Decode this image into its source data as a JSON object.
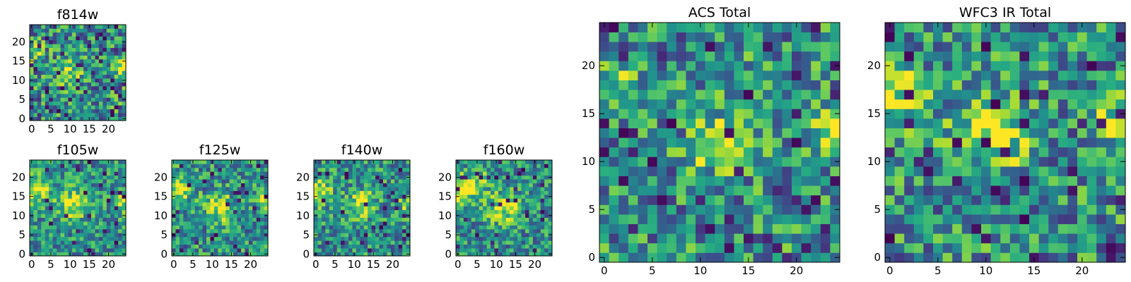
{
  "chart_data": [
    {
      "id": "f814w",
      "type": "heatmap",
      "title": "f814w",
      "colormap": "viridis",
      "xlabel": "",
      "ylabel": "",
      "xlim": [
        -0.5,
        24.5
      ],
      "ylim": [
        -0.5,
        24.5
      ],
      "xticks": [
        0,
        5,
        10,
        15,
        20
      ],
      "yticks": [
        0,
        5,
        10,
        15,
        20
      ],
      "seed": 814,
      "noise": 0.35,
      "dark_rate": 0.06,
      "blobs": [
        {
          "x": 10,
          "y": 12,
          "s": 2.2,
          "a": 0.35
        },
        {
          "x": 24,
          "y": 13,
          "s": 1.8,
          "a": 0.5
        },
        {
          "x": 1,
          "y": 17,
          "s": 2.0,
          "a": 0.25
        }
      ]
    },
    {
      "id": "f105w",
      "type": "heatmap",
      "title": "f105w",
      "colormap": "viridis",
      "xlabel": "",
      "ylabel": "",
      "xlim": [
        -0.5,
        24.5
      ],
      "ylim": [
        -0.5,
        24.5
      ],
      "xticks": [
        0,
        5,
        10,
        15,
        20
      ],
      "yticks": [
        0,
        5,
        10,
        15,
        20
      ],
      "seed": 105,
      "noise": 0.28,
      "dark_rate": 0.04,
      "blobs": [
        {
          "x": 1,
          "y": 17,
          "s": 2.6,
          "a": 0.45
        },
        {
          "x": 11,
          "y": 13,
          "s": 3.0,
          "a": 0.4
        },
        {
          "x": 24,
          "y": 13,
          "s": 1.8,
          "a": 0.4
        }
      ]
    },
    {
      "id": "f125w",
      "type": "heatmap",
      "title": "f125w",
      "colormap": "viridis",
      "xlabel": "",
      "ylabel": "",
      "xlim": [
        -0.5,
        24.5
      ],
      "ylim": [
        -0.5,
        24.5
      ],
      "xticks": [
        0,
        5,
        10,
        15,
        20
      ],
      "yticks": [
        0,
        5,
        10,
        15,
        20
      ],
      "seed": 125,
      "noise": 0.3,
      "dark_rate": 0.04,
      "blobs": [
        {
          "x": 1,
          "y": 17,
          "s": 2.6,
          "a": 0.45
        },
        {
          "x": 12,
          "y": 12,
          "s": 2.6,
          "a": 0.45
        },
        {
          "x": 24,
          "y": 14,
          "s": 1.8,
          "a": 0.35
        }
      ]
    },
    {
      "id": "f140w",
      "type": "heatmap",
      "title": "f140w",
      "colormap": "viridis",
      "xlabel": "",
      "ylabel": "",
      "xlim": [
        -0.5,
        24.5
      ],
      "ylim": [
        -0.5,
        24.5
      ],
      "xticks": [
        0,
        5,
        10,
        15,
        20
      ],
      "yticks": [
        0,
        5,
        10,
        15,
        20
      ],
      "seed": 140,
      "noise": 0.3,
      "dark_rate": 0.05,
      "blobs": [
        {
          "x": 1,
          "y": 16,
          "s": 2.4,
          "a": 0.45
        },
        {
          "x": 12,
          "y": 13,
          "s": 2.6,
          "a": 0.45
        },
        {
          "x": 24,
          "y": 13,
          "s": 1.6,
          "a": 0.3
        }
      ]
    },
    {
      "id": "f160w",
      "type": "heatmap",
      "title": "f160w",
      "colormap": "viridis",
      "xlabel": "",
      "ylabel": "",
      "xlim": [
        -0.5,
        24.5
      ],
      "ylim": [
        -0.5,
        24.5
      ],
      "xticks": [
        0,
        5,
        10,
        15,
        20
      ],
      "yticks": [
        0,
        5,
        10,
        15,
        20
      ],
      "seed": 160,
      "noise": 0.28,
      "dark_rate": 0.05,
      "blobs": [
        {
          "x": 1,
          "y": 17,
          "s": 2.6,
          "a": 0.55
        },
        {
          "x": 12,
          "y": 12,
          "s": 3.0,
          "a": 0.4
        },
        {
          "x": 6,
          "y": 19,
          "s": 2.0,
          "a": 0.25
        }
      ]
    },
    {
      "id": "acs-total",
      "type": "heatmap",
      "title": "ACS Total",
      "colormap": "viridis",
      "xlabel": "",
      "ylabel": "",
      "xlim": [
        -0.5,
        24.5
      ],
      "ylim": [
        -0.5,
        24.5
      ],
      "xticks": [
        0,
        5,
        10,
        15,
        20
      ],
      "yticks": [
        0,
        5,
        10,
        15,
        20
      ],
      "seed": 4242,
      "noise": 0.34,
      "dark_rate": 0.06,
      "blobs": [
        {
          "x": 12,
          "y": 12,
          "s": 2.0,
          "a": 0.45
        },
        {
          "x": 24,
          "y": 13,
          "s": 1.8,
          "a": 0.5
        },
        {
          "x": 1,
          "y": 17,
          "s": 1.8,
          "a": 0.35
        }
      ]
    },
    {
      "id": "wfc3-ir-total",
      "type": "heatmap",
      "title": "WFC3 IR Total",
      "colormap": "viridis",
      "xlabel": "",
      "ylabel": "",
      "xlim": [
        -0.5,
        24.5
      ],
      "ylim": [
        -0.5,
        24.5
      ],
      "xticks": [
        0,
        5,
        10,
        15,
        20
      ],
      "yticks": [
        0,
        5,
        10,
        15,
        20
      ],
      "seed": 3131,
      "noise": 0.34,
      "dark_rate": 0.06,
      "blobs": [
        {
          "x": 11,
          "y": 13,
          "s": 2.6,
          "a": 0.45
        },
        {
          "x": 24,
          "y": 14,
          "s": 1.6,
          "a": 0.5
        },
        {
          "x": 1,
          "y": 17,
          "s": 2.2,
          "a": 0.4
        }
      ]
    }
  ]
}
